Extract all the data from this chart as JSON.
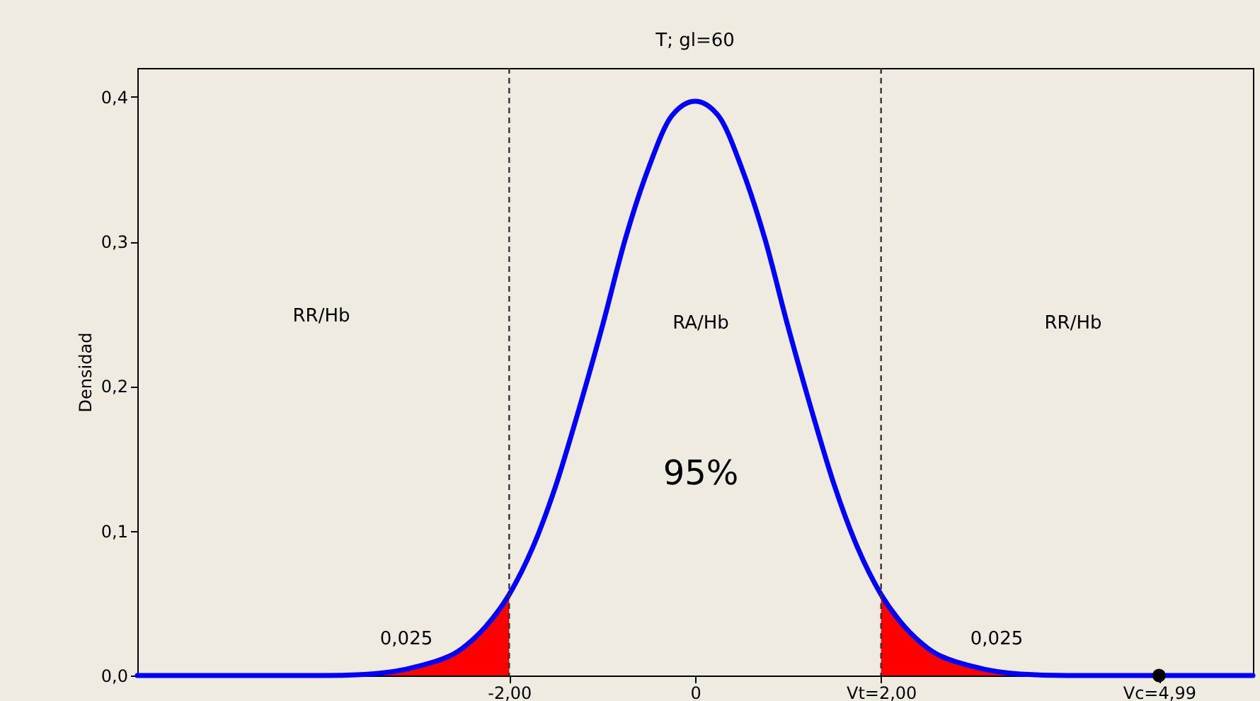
{
  "chart_data": {
    "type": "line",
    "title": "T; gl=60",
    "ylabel": "Densidad",
    "xlim": [
      -6,
      6
    ],
    "ylim": [
      0,
      0.42
    ],
    "xticks": [
      {
        "value": -2,
        "label": "-2,00"
      },
      {
        "value": 0,
        "label": "0"
      },
      {
        "value": 2,
        "label": "Vt=2,00"
      },
      {
        "value": 4.99,
        "label": "Vc=4,99"
      }
    ],
    "yticks": [
      {
        "value": 0,
        "label": "0,0"
      },
      {
        "value": 0.1,
        "label": "0,1"
      },
      {
        "value": 0.2,
        "label": "0,2"
      },
      {
        "value": 0.3,
        "label": "0,3"
      },
      {
        "value": 0.4,
        "label": "0,4"
      }
    ],
    "series": [
      {
        "type": "area",
        "color": "#ff0000",
        "x": [
          -6,
          -5,
          -4,
          -3.5,
          -3,
          -2.5,
          -2.25,
          -2
        ],
        "values": [
          0,
          0,
          0,
          0.001,
          0.006,
          0.019,
          0.034,
          0.056
        ]
      },
      {
        "type": "area",
        "color": "#ff0000",
        "x": [
          2,
          2.25,
          2.5,
          3,
          3.5,
          4,
          5,
          6
        ],
        "values": [
          0.056,
          0.034,
          0.019,
          0.006,
          0.001,
          0,
          0,
          0
        ]
      },
      {
        "color": "#0000ff",
        "x": [
          -6,
          -5,
          -4,
          -3.5,
          -3,
          -2.5,
          -2.25,
          -2,
          -1.75,
          -1.5,
          -1.25,
          -1,
          -0.75,
          -0.5,
          -0.25,
          0,
          0.25,
          0.5,
          0.75,
          1,
          1.25,
          1.5,
          1.75,
          2,
          2.25,
          2.5,
          3,
          3.5,
          4,
          5,
          6
        ],
        "values": [
          0,
          0,
          0,
          0.001,
          0.006,
          0.019,
          0.034,
          0.056,
          0.088,
          0.131,
          0.184,
          0.241,
          0.302,
          0.351,
          0.387,
          0.397,
          0.387,
          0.351,
          0.302,
          0.241,
          0.184,
          0.131,
          0.088,
          0.056,
          0.034,
          0.019,
          0.006,
          0.001,
          0,
          0,
          0
        ]
      },
      {
        "type": "scatter",
        "color": "#000000",
        "x": [
          4.99
        ],
        "values": [
          0
        ]
      }
    ],
    "ref_lines": [
      {
        "axis": "x",
        "value": -2,
        "color": "#333333",
        "line_style": "dashed"
      },
      {
        "axis": "x",
        "value": 2,
        "color": "#333333",
        "line_style": "dashed"
      }
    ],
    "annotations": [
      "RR/Hb",
      "RA/Hb",
      "RR/Hb",
      "95%",
      "0,025",
      "0,025"
    ],
    "grid": false
  }
}
